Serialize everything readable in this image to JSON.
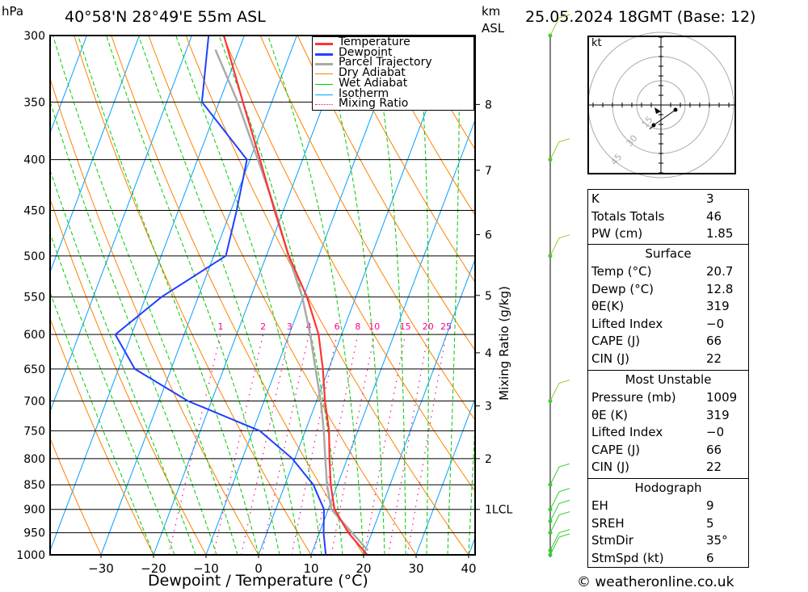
{
  "header": {
    "pressure_unit": "hPa",
    "location": "40°58'N 28°49'E 55m ASL",
    "height_unit_km": "km",
    "height_unit_asl": "ASL",
    "datetime": "25.05.2024 18GMT (Base: 12)"
  },
  "footer": {
    "copyright": "© weatheronline.co.uk"
  },
  "colors": {
    "temperature": "#ff3333",
    "dewpoint": "#2040ff",
    "parcel": "#aaaaaa",
    "dry_adiabat": "#ff8000",
    "wet_adiabat": "#00cc00",
    "isotherm": "#00a0ff",
    "mixing_ratio": "#ff0090"
  },
  "chart_data": {
    "type": "line",
    "subtype": "skew-T log-p",
    "title": "40°58'N 28°49'E 55m ASL",
    "xlabel": "Dewpoint / Temperature (°C)",
    "ylabel": "hPa",
    "y2label": "Mixing Ratio (g/kg)",
    "xlim": [
      -40,
      40
    ],
    "ylim": [
      1000,
      300
    ],
    "x_ticks": [
      "−30",
      "−20",
      "−10",
      "0",
      "10",
      "20",
      "30",
      "40"
    ],
    "x_tick_values": [
      -30,
      -20,
      -10,
      0,
      10,
      20,
      30,
      40
    ],
    "pressure_levels": [
      "300",
      "350",
      "400",
      "450",
      "500",
      "550",
      "600",
      "650",
      "700",
      "750",
      "800",
      "850",
      "900",
      "950",
      "1000"
    ],
    "km_labels": [
      {
        "label": "8",
        "p": 352
      },
      {
        "label": "7",
        "p": 410
      },
      {
        "label": "6",
        "p": 476
      },
      {
        "label": "5",
        "p": 548
      },
      {
        "label": "4",
        "p": 626
      },
      {
        "label": "3",
        "p": 708
      },
      {
        "label": "2",
        "p": 800
      },
      {
        "label": "1LCL",
        "p": 900
      }
    ],
    "mixing_ratio_labels": [
      "1",
      "2",
      "3",
      "4",
      "6",
      "8",
      "10",
      "15",
      "20",
      "25"
    ],
    "mixing_ratio_values": [
      1,
      2,
      3,
      4,
      6,
      8,
      10,
      15,
      20,
      25
    ],
    "legend": [
      "Temperature",
      "Dewpoint",
      "Parcel Trajectory",
      "Dry Adiabat",
      "Wet Adiabat",
      "Isotherm",
      "Mixing Ratio"
    ],
    "legend_position": "top-right",
    "series": [
      {
        "name": "Temperature",
        "p": [
          1000,
          950,
          900,
          850,
          800,
          750,
          700,
          650,
          600,
          550,
          500,
          450,
          400,
          350,
          300
        ],
        "t": [
          20.7,
          15.5,
          11.2,
          8.7,
          6.6,
          4.5,
          1.6,
          -1.1,
          -4.4,
          -9.3,
          -15.7,
          -21.7,
          -28.1,
          -35.5,
          -43.9
        ]
      },
      {
        "name": "Dewpoint",
        "p": [
          1000,
          950,
          900,
          850,
          800,
          750,
          700,
          650,
          600,
          550,
          500,
          450,
          400,
          350,
          300
        ],
        "t": [
          12.8,
          10.8,
          9.2,
          5.4,
          -0.5,
          -8.7,
          -24.5,
          -36.9,
          -43.1,
          -37.0,
          -27.7,
          -28.9,
          -30.6,
          -43.3,
          -46.8
        ]
      },
      {
        "name": "Parcel Trajectory",
        "p": [
          990,
          900,
          850,
          800,
          750,
          700,
          650,
          600,
          550,
          500,
          450,
          400,
          350,
          310
        ],
        "t": [
          20.5,
          10.6,
          8.0,
          5.8,
          3.5,
          0.8,
          -2.5,
          -6.0,
          -10.2,
          -15.8,
          -21.5,
          -28.5,
          -36.5,
          -44.5
        ]
      }
    ],
    "wind_barbs_p": [
      1000,
      990,
      950,
      925,
      900,
      850,
      700,
      500,
      400,
      300
    ]
  },
  "hodograph": {
    "unit": "kt",
    "ring_labels": [
      "15",
      "30",
      "45"
    ],
    "rings_kt": [
      15,
      30,
      45
    ]
  },
  "indices": {
    "rows": [
      {
        "label": "K",
        "value": "3"
      },
      {
        "label": "Totals Totals",
        "value": "46"
      },
      {
        "label": "PW (cm)",
        "value": "1.85"
      }
    ]
  },
  "surface": {
    "title": "Surface",
    "rows": [
      {
        "label": "Temp (°C)",
        "value": "20.7"
      },
      {
        "label": "Dewp (°C)",
        "value": "12.8"
      },
      {
        "label": "θE(K)",
        "value": "319"
      },
      {
        "label": "Lifted Index",
        "value": "−0"
      },
      {
        "label": "CAPE (J)",
        "value": "66"
      },
      {
        "label": "CIN (J)",
        "value": "22"
      }
    ]
  },
  "most_unstable": {
    "title": "Most Unstable",
    "rows": [
      {
        "label": "Pressure (mb)",
        "value": "1009"
      },
      {
        "label": "θE (K)",
        "value": "319"
      },
      {
        "label": "Lifted Index",
        "value": "−0"
      },
      {
        "label": "CAPE (J)",
        "value": "66"
      },
      {
        "label": "CIN (J)",
        "value": "22"
      }
    ]
  },
  "hodograph_table": {
    "title": "Hodograph",
    "rows": [
      {
        "label": "EH",
        "value": "9"
      },
      {
        "label": "SREH",
        "value": "5"
      },
      {
        "label": "StmDir",
        "value": "35°"
      },
      {
        "label": "StmSpd (kt)",
        "value": "6"
      }
    ]
  }
}
